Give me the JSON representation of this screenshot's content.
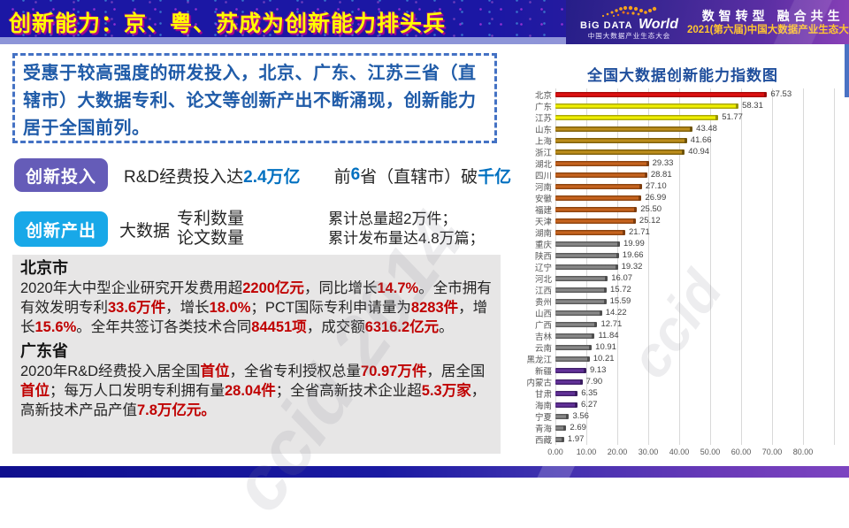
{
  "header": {
    "title": "创新能力：京、粤、苏成为创新能力排头兵",
    "brand": {
      "logo_line1": "BiG DATA",
      "logo_world": "World",
      "logo_sub": "中国大数据产业生态大会",
      "slogan": "数智转型 融合共生",
      "event": "2021(第六届)中国大数据产业生态大会"
    }
  },
  "summary_box": {
    "text": "受惠于较高强度的研发投入，北京、广东、江苏三省（直辖市）大数据专利、论文等创新产出不断涌现，创新能力居于全国前列。"
  },
  "investment": {
    "badge": "创新投入",
    "segments": [
      {
        "t": "R&D经费投入达",
        "c": ""
      },
      {
        "t": "2.4万亿",
        "c": "em-blue"
      },
      {
        "t": "　　",
        "c": ""
      },
      {
        "t": "前",
        "c": ""
      },
      {
        "t": "6",
        "c": "em-blue"
      },
      {
        "t": "省（直辖市）破",
        "c": ""
      },
      {
        "t": "千亿",
        "c": "em-blue"
      }
    ]
  },
  "output": {
    "badge": "创新产出",
    "prefix": "大数据",
    "stack1": [
      "专利数量",
      "论文数量"
    ],
    "stack2": [
      "累计总量超2万件；",
      "累计发布量达4.8万篇；"
    ]
  },
  "details": {
    "beijing_title": "北京市",
    "beijing_segments": [
      {
        "t": "2020年大中型企业研究开发费用超",
        "c": ""
      },
      {
        "t": "2200亿元",
        "c": "em-red"
      },
      {
        "t": "，同比增长",
        "c": ""
      },
      {
        "t": "14.7%",
        "c": "em-red"
      },
      {
        "t": "。全市拥有有效发明专利",
        "c": ""
      },
      {
        "t": "33.6万件",
        "c": "em-red"
      },
      {
        "t": "，增长",
        "c": ""
      },
      {
        "t": "18.0%",
        "c": "em-red"
      },
      {
        "t": "；PCT国际专利申请量为",
        "c": ""
      },
      {
        "t": "8283件",
        "c": "em-red"
      },
      {
        "t": "，增长",
        "c": ""
      },
      {
        "t": "15.6%",
        "c": "em-red"
      },
      {
        "t": "。全年共签订各类技术合同",
        "c": ""
      },
      {
        "t": "84451项",
        "c": "em-red"
      },
      {
        "t": "，成交额",
        "c": ""
      },
      {
        "t": "6316.2亿元",
        "c": "em-red"
      },
      {
        "t": "。",
        "c": ""
      }
    ],
    "guangdong_title": "广东省",
    "guangdong_segments": [
      {
        "t": "2020年R&D经费投入居全国",
        "c": ""
      },
      {
        "t": "首位",
        "c": "em-red"
      },
      {
        "t": "，全省专利授权总量",
        "c": ""
      },
      {
        "t": "70.97万件",
        "c": "em-red"
      },
      {
        "t": "，居全国",
        "c": ""
      },
      {
        "t": "首位",
        "c": "em-red"
      },
      {
        "t": "；每万人口发明专利拥有量",
        "c": ""
      },
      {
        "t": "28.04件",
        "c": "em-red"
      },
      {
        "t": "；全省高新技术企业超",
        "c": ""
      },
      {
        "t": "5.3万家",
        "c": "em-red"
      },
      {
        "t": "，高新技术产品产值",
        "c": ""
      },
      {
        "t": "7.8万亿元。",
        "c": "em-red"
      }
    ]
  },
  "accents": {
    "invest_badge": "#655CB8",
    "output_badge": "#18A8E8",
    "emphasis_blue": "#0070C0",
    "emphasis_red": "#C00000",
    "title_yellow": "#FFFF00",
    "chart_title_blue": "#1F4E9C"
  },
  "watermark": {
    "text1": "ccid 2014",
    "text2": "ccid"
  },
  "chart_data": {
    "type": "bar",
    "orientation": "horizontal",
    "title": "全国大数据创新能力指数图",
    "xlabel": "",
    "ylabel": "",
    "xlim": [
      0,
      90
    ],
    "grid": true,
    "x_ticks": [
      "0.00",
      "10.00",
      "20.00",
      "30.00",
      "40.00",
      "50.00",
      "60.00",
      "70.00",
      "80.00"
    ],
    "bars": [
      {
        "label": "北京",
        "value": 67.53,
        "display": "67.53",
        "color": "#E01111",
        "edge": "#9B0A0A"
      },
      {
        "label": "广东",
        "value": 58.31,
        "display": "58.31",
        "color": "#F2F200",
        "edge": "#97930A"
      },
      {
        "label": "江苏",
        "value": 51.77,
        "display": "51.77",
        "color": "#F2F200",
        "edge": "#97930A"
      },
      {
        "label": "山东",
        "value": 43.48,
        "display": "43.48",
        "color": "#BE8F1C",
        "edge": "#6F5408"
      },
      {
        "label": "上海",
        "value": 41.66,
        "display": "41.66",
        "color": "#BE8F1C",
        "edge": "#6F5408"
      },
      {
        "label": "浙江",
        "value": 40.94,
        "display": "40.94",
        "color": "#BE8F1C",
        "edge": "#6F5408"
      },
      {
        "label": "湖北",
        "value": 29.33,
        "display": "29.33",
        "color": "#C8641E",
        "edge": "#7E3D0E"
      },
      {
        "label": "四川",
        "value": 28.81,
        "display": "28.81",
        "color": "#C8641E",
        "edge": "#7E3D0E"
      },
      {
        "label": "河南",
        "value": 27.1,
        "display": "27.10",
        "color": "#C8641E",
        "edge": "#7E3D0E"
      },
      {
        "label": "安徽",
        "value": 26.99,
        "display": "26.99",
        "color": "#C8641E",
        "edge": "#7E3D0E"
      },
      {
        "label": "福建",
        "value": 25.5,
        "display": "25.50",
        "color": "#C8641E",
        "edge": "#7E3D0E"
      },
      {
        "label": "天津",
        "value": 25.12,
        "display": "25.12",
        "color": "#C8641E",
        "edge": "#7E3D0E"
      },
      {
        "label": "湖南",
        "value": 21.71,
        "display": "21.71",
        "color": "#C8641E",
        "edge": "#7E3D0E"
      },
      {
        "label": "重庆",
        "value": 19.99,
        "display": "19.99",
        "color": "#8A8A8A",
        "edge": "#4F4F4F"
      },
      {
        "label": "陕西",
        "value": 19.66,
        "display": "19.66",
        "color": "#8A8A8A",
        "edge": "#4F4F4F"
      },
      {
        "label": "辽宁",
        "value": 19.32,
        "display": "19.32",
        "color": "#8A8A8A",
        "edge": "#4F4F4F"
      },
      {
        "label": "河北",
        "value": 16.07,
        "display": "16.07",
        "color": "#8A8A8A",
        "edge": "#4F4F4F"
      },
      {
        "label": "江西",
        "value": 15.72,
        "display": "15.72",
        "color": "#8A8A8A",
        "edge": "#4F4F4F"
      },
      {
        "label": "贵州",
        "value": 15.59,
        "display": "15.59",
        "color": "#8A8A8A",
        "edge": "#4F4F4F"
      },
      {
        "label": "山西",
        "value": 14.22,
        "display": "14.22",
        "color": "#8A8A8A",
        "edge": "#4F4F4F"
      },
      {
        "label": "广西",
        "value": 12.71,
        "display": "12.71",
        "color": "#8A8A8A",
        "edge": "#4F4F4F"
      },
      {
        "label": "吉林",
        "value": 11.84,
        "display": "11.84",
        "color": "#8A8A8A",
        "edge": "#4F4F4F"
      },
      {
        "label": "云南",
        "value": 10.91,
        "display": "10.91",
        "color": "#8A8A8A",
        "edge": "#4F4F4F"
      },
      {
        "label": "黑龙江",
        "value": 10.21,
        "display": "10.21",
        "color": "#8A8A8A",
        "edge": "#4F4F4F"
      },
      {
        "label": "新疆",
        "value": 9.13,
        "display": "9.13",
        "color": "#64329B",
        "edge": "#3A1C60"
      },
      {
        "label": "内蒙古",
        "value": 7.9,
        "display": "7.90",
        "color": "#64329B",
        "edge": "#3A1C60"
      },
      {
        "label": "甘肃",
        "value": 6.35,
        "display": "6.35",
        "color": "#64329B",
        "edge": "#3A1C60"
      },
      {
        "label": "海南",
        "value": 6.27,
        "display": "6.27",
        "color": "#64329B",
        "edge": "#3A1C60"
      },
      {
        "label": "宁夏",
        "value": 3.56,
        "display": "3.56",
        "color": "#8A8A8A",
        "edge": "#4F4F4F"
      },
      {
        "label": "青海",
        "value": 2.69,
        "display": "2.69",
        "color": "#8A8A8A",
        "edge": "#4F4F4F"
      },
      {
        "label": "西藏",
        "value": 1.97,
        "display": "1.97",
        "color": "#8A8A8A",
        "edge": "#4F4F4F"
      }
    ]
  }
}
